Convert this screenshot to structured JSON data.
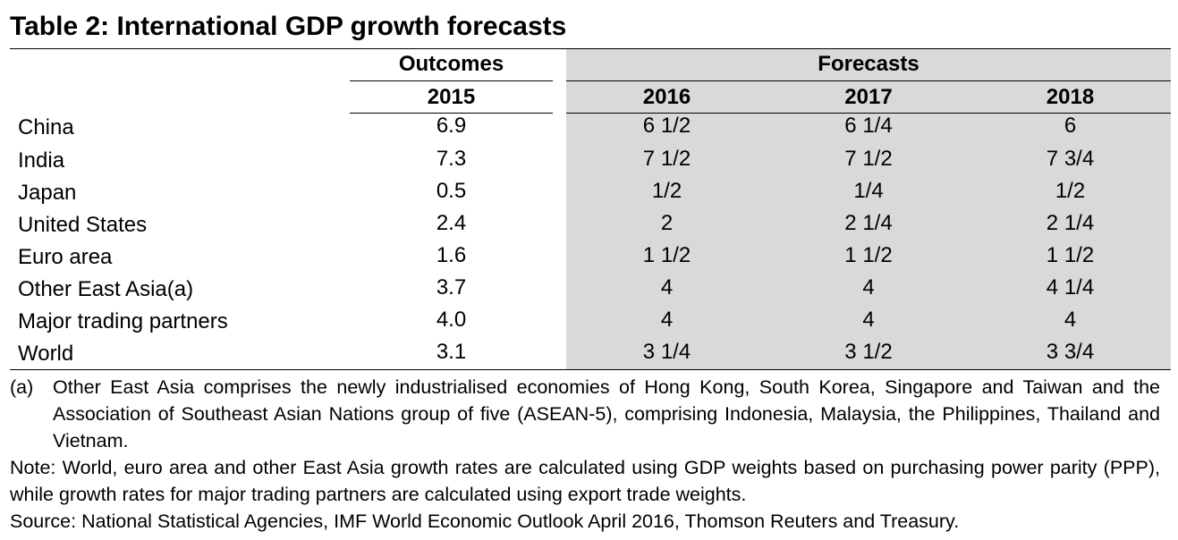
{
  "title": "Table 2: International GDP growth forecasts",
  "headers": {
    "outcomes": "Outcomes",
    "forecasts": "Forecasts",
    "years": [
      "2015",
      "2016",
      "2017",
      "2018"
    ]
  },
  "rows": [
    {
      "label": "China",
      "values": [
        "6.9",
        "6 1/2",
        "6 1/4",
        "6"
      ]
    },
    {
      "label": "India",
      "values": [
        "7.3",
        "7 1/2",
        "7 1/2",
        "7 3/4"
      ]
    },
    {
      "label": "Japan",
      "values": [
        "0.5",
        "1/2",
        "1/4",
        "1/2"
      ]
    },
    {
      "label": "United States",
      "values": [
        "2.4",
        "2",
        "2 1/4",
        "2 1/4"
      ]
    },
    {
      "label": "Euro area",
      "values": [
        "1.6",
        "1 1/2",
        "1 1/2",
        "1 1/2"
      ]
    },
    {
      "label": "Other East Asia(a)",
      "values": [
        "3.7",
        "4",
        "4",
        "4 1/4"
      ]
    },
    {
      "label": "Major trading partners",
      "values": [
        "4.0",
        "4",
        "4",
        "4"
      ]
    },
    {
      "label": "World",
      "values": [
        "3.1",
        "3 1/4",
        "3 1/2",
        "3 3/4"
      ]
    }
  ],
  "notes": {
    "footnote_marker": "(a)",
    "footnote_text": "Other East Asia comprises the newly industrialised economies of Hong Kong, South Korea, Singapore and Taiwan and the Association of Southeast Asian Nations group of five (ASEAN-5), comprising Indonesia, Malaysia, the Philippines, Thailand and Vietnam.",
    "note": "Note: World, euro area and other East Asia growth rates are calculated using GDP weights based on purchasing power parity (PPP), while growth rates for major trading partners are calculated using export trade weights.",
    "source": "Source: National Statistical Agencies, IMF World Economic Outlook April 2016, Thomson Reuters and Treasury."
  }
}
